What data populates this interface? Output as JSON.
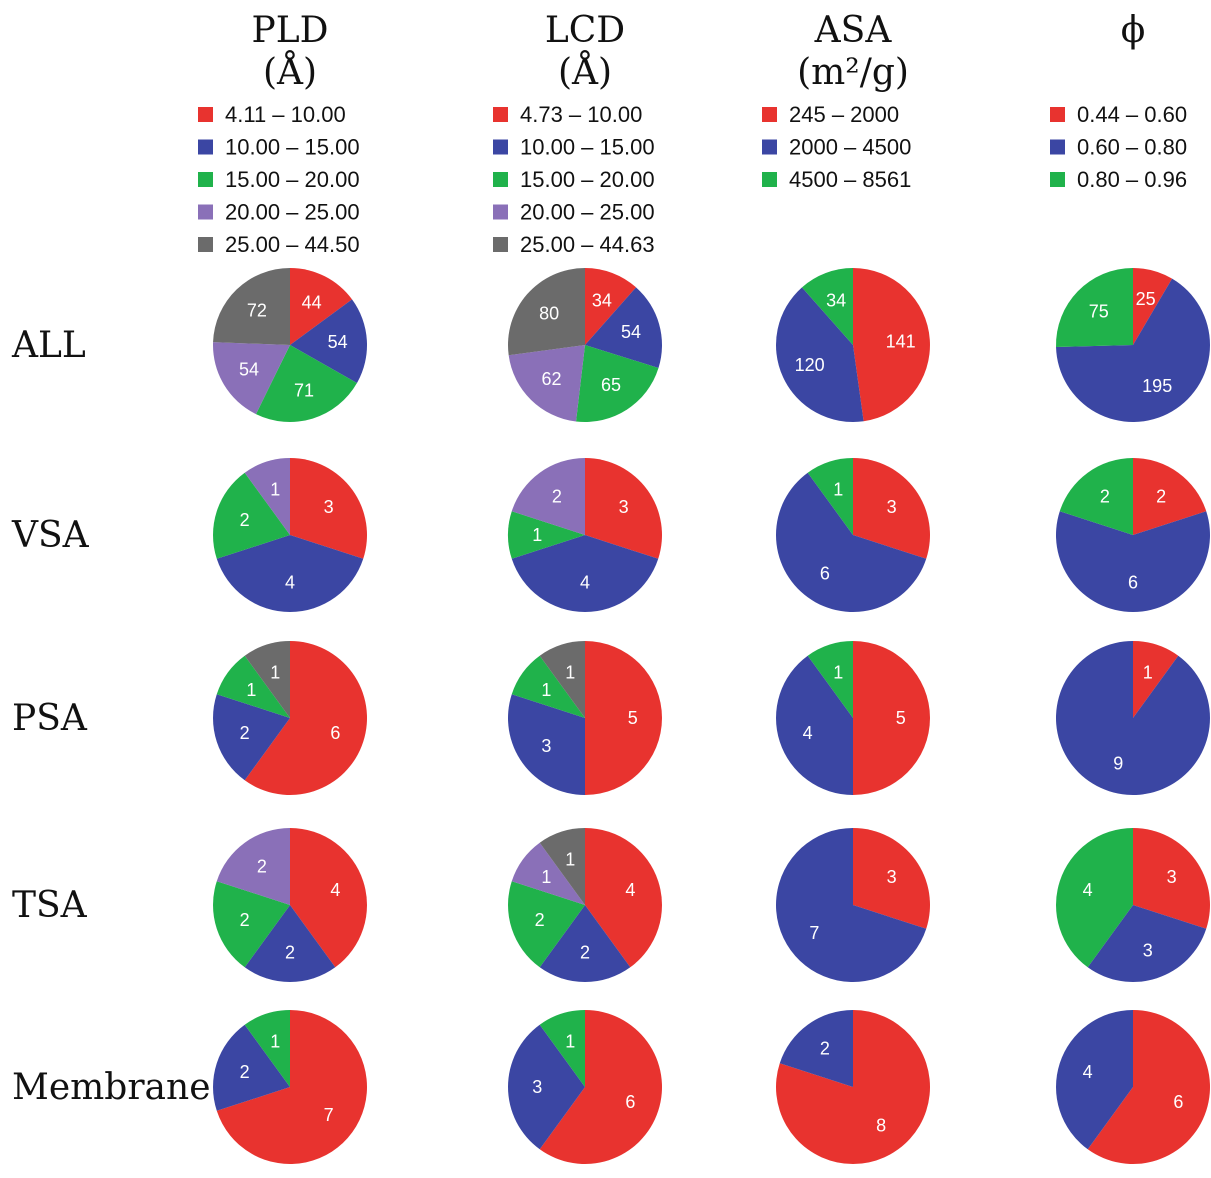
{
  "colors": {
    "red": "#e8332f",
    "blue": "#3b46a3",
    "green": "#20b24b",
    "purple": "#8a70b8",
    "gray": "#6b6b6b"
  },
  "columns": [
    {
      "key": "pld",
      "title_line1": "PLD",
      "title_line2": "(Å)",
      "legend": [
        {
          "label": "4.11 – 10.00",
          "color": "red"
        },
        {
          "label": "10.00 – 15.00",
          "color": "blue"
        },
        {
          "label": "15.00 – 20.00",
          "color": "green"
        },
        {
          "label": "20.00 – 25.00",
          "color": "purple"
        },
        {
          "label": "25.00 – 44.50",
          "color": "gray"
        }
      ]
    },
    {
      "key": "lcd",
      "title_line1": "LCD",
      "title_line2": "(Å)",
      "legend": [
        {
          "label": "4.73 – 10.00",
          "color": "red"
        },
        {
          "label": "10.00 – 15.00",
          "color": "blue"
        },
        {
          "label": "15.00 – 20.00",
          "color": "green"
        },
        {
          "label": "20.00 – 25.00",
          "color": "purple"
        },
        {
          "label": "25.00 – 44.63",
          "color": "gray"
        }
      ]
    },
    {
      "key": "asa",
      "title_line1": "ASA",
      "title_line2": "(m²/g)",
      "legend": [
        {
          "label": "245 – 2000",
          "color": "red"
        },
        {
          "label": "2000 – 4500",
          "color": "blue"
        },
        {
          "label": "4500 – 8561",
          "color": "green"
        }
      ]
    },
    {
      "key": "phi",
      "title_line1": "ϕ",
      "title_line2": "",
      "legend": [
        {
          "label": "0.44 – 0.60",
          "color": "red"
        },
        {
          "label": "0.60 – 0.80",
          "color": "blue"
        },
        {
          "label": "0.80 – 0.96",
          "color": "green"
        }
      ]
    }
  ],
  "rows": [
    {
      "key": "all",
      "label": "ALL"
    },
    {
      "key": "vsa",
      "label": "VSA"
    },
    {
      "key": "psa",
      "label": "PSA"
    },
    {
      "key": "tsa",
      "label": "TSA"
    },
    {
      "key": "membrane",
      "label": "Membrane"
    }
  ],
  "chart_data": {
    "type": "pie",
    "pies": [
      {
        "row": "all",
        "col": "pld",
        "values": [
          44,
          54,
          71,
          54,
          72
        ],
        "colors": [
          "red",
          "blue",
          "green",
          "purple",
          "gray"
        ]
      },
      {
        "row": "all",
        "col": "lcd",
        "values": [
          34,
          54,
          65,
          62,
          80
        ],
        "colors": [
          "red",
          "blue",
          "green",
          "purple",
          "gray"
        ]
      },
      {
        "row": "all",
        "col": "asa",
        "values": [
          141,
          120,
          34
        ],
        "colors": [
          "red",
          "blue",
          "green"
        ]
      },
      {
        "row": "all",
        "col": "phi",
        "values": [
          25,
          195,
          75
        ],
        "colors": [
          "red",
          "blue",
          "green"
        ]
      },
      {
        "row": "vsa",
        "col": "pld",
        "values": [
          3,
          4,
          2,
          1
        ],
        "colors": [
          "red",
          "blue",
          "green",
          "purple"
        ]
      },
      {
        "row": "vsa",
        "col": "lcd",
        "values": [
          3,
          4,
          1,
          2
        ],
        "colors": [
          "red",
          "blue",
          "green",
          "purple"
        ]
      },
      {
        "row": "vsa",
        "col": "asa",
        "values": [
          3,
          6,
          1
        ],
        "colors": [
          "red",
          "blue",
          "green"
        ]
      },
      {
        "row": "vsa",
        "col": "phi",
        "values": [
          2,
          6,
          2
        ],
        "colors": [
          "red",
          "blue",
          "green"
        ]
      },
      {
        "row": "psa",
        "col": "pld",
        "values": [
          6,
          2,
          1,
          1
        ],
        "colors": [
          "red",
          "blue",
          "green",
          "gray"
        ]
      },
      {
        "row": "psa",
        "col": "lcd",
        "values": [
          5,
          3,
          1,
          1
        ],
        "colors": [
          "red",
          "blue",
          "green",
          "gray"
        ]
      },
      {
        "row": "psa",
        "col": "asa",
        "values": [
          5,
          4,
          1
        ],
        "colors": [
          "red",
          "blue",
          "green"
        ]
      },
      {
        "row": "psa",
        "col": "phi",
        "values": [
          1,
          9
        ],
        "colors": [
          "red",
          "blue"
        ]
      },
      {
        "row": "tsa",
        "col": "pld",
        "values": [
          4,
          2,
          2,
          2
        ],
        "colors": [
          "red",
          "blue",
          "green",
          "purple"
        ]
      },
      {
        "row": "tsa",
        "col": "lcd",
        "values": [
          4,
          2,
          2,
          1,
          1
        ],
        "colors": [
          "red",
          "blue",
          "green",
          "purple",
          "gray"
        ]
      },
      {
        "row": "tsa",
        "col": "asa",
        "values": [
          3,
          7
        ],
        "colors": [
          "red",
          "blue"
        ]
      },
      {
        "row": "tsa",
        "col": "phi",
        "values": [
          3,
          3,
          4
        ],
        "colors": [
          "red",
          "blue",
          "green"
        ]
      },
      {
        "row": "membrane",
        "col": "pld",
        "values": [
          7,
          2,
          1
        ],
        "colors": [
          "red",
          "blue",
          "green"
        ]
      },
      {
        "row": "membrane",
        "col": "lcd",
        "values": [
          6,
          3,
          1
        ],
        "colors": [
          "red",
          "blue",
          "green"
        ]
      },
      {
        "row": "membrane",
        "col": "asa",
        "values": [
          8,
          2
        ],
        "colors": [
          "red",
          "blue"
        ]
      },
      {
        "row": "membrane",
        "col": "phi",
        "values": [
          6,
          4
        ],
        "colors": [
          "red",
          "blue"
        ]
      }
    ]
  }
}
